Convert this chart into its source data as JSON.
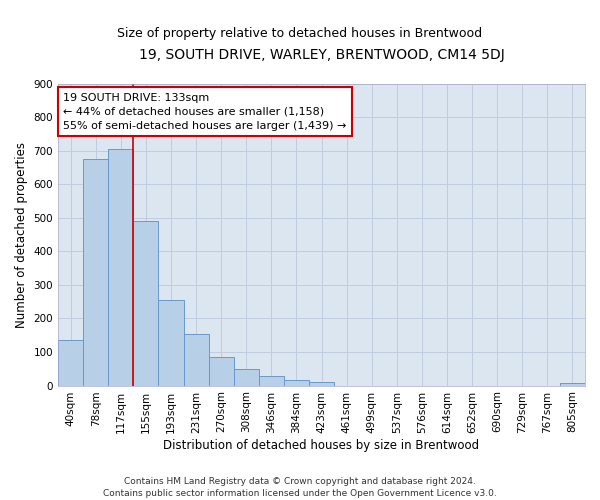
{
  "title": "19, SOUTH DRIVE, WARLEY, BRENTWOOD, CM14 5DJ",
  "subtitle": "Size of property relative to detached houses in Brentwood",
  "xlabel": "Distribution of detached houses by size in Brentwood",
  "ylabel": "Number of detached properties",
  "bar_labels": [
    "40sqm",
    "78sqm",
    "117sqm",
    "155sqm",
    "193sqm",
    "231sqm",
    "270sqm",
    "308sqm",
    "346sqm",
    "384sqm",
    "423sqm",
    "461sqm",
    "499sqm",
    "537sqm",
    "576sqm",
    "614sqm",
    "652sqm",
    "690sqm",
    "729sqm",
    "767sqm",
    "805sqm"
  ],
  "bar_values": [
    135,
    675,
    705,
    490,
    255,
    155,
    85,
    50,
    28,
    18,
    10,
    0,
    0,
    0,
    0,
    0,
    0,
    0,
    0,
    0,
    8
  ],
  "bar_color": "#b8cfe8",
  "bar_edge_color": "#6699cc",
  "vline_x": 2.5,
  "vline_color": "#cc0000",
  "annotation_line1": "19 SOUTH DRIVE: 133sqm",
  "annotation_line2": "← 44% of detached houses are smaller (1,158)",
  "annotation_line3": "55% of semi-detached houses are larger (1,439) →",
  "annotation_box_color": "#cc0000",
  "ylim": [
    0,
    900
  ],
  "yticks": [
    0,
    100,
    200,
    300,
    400,
    500,
    600,
    700,
    800,
    900
  ],
  "grid_color": "#c0cde0",
  "bg_color": "#dce6f0",
  "footer": "Contains HM Land Registry data © Crown copyright and database right 2024.\nContains public sector information licensed under the Open Government Licence v3.0.",
  "title_fontsize": 10,
  "subtitle_fontsize": 9,
  "xlabel_fontsize": 8.5,
  "ylabel_fontsize": 8.5,
  "tick_fontsize": 7.5,
  "annotation_fontsize": 8,
  "footer_fontsize": 6.5
}
